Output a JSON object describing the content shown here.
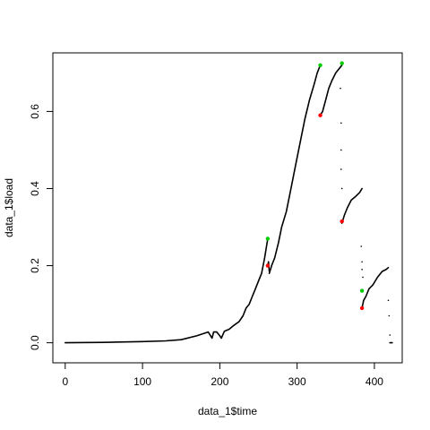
{
  "chart_data": {
    "type": "scatter",
    "xlabel": "data_1$time",
    "ylabel": "data_1$load",
    "xlim": [
      -16,
      436
    ],
    "ylim": [
      -0.052,
      0.752
    ],
    "x_ticks": [
      0,
      100,
      200,
      300,
      400
    ],
    "y_ticks": [
      0.0,
      0.2,
      0.4,
      0.6
    ],
    "x_tick_labels": [
      "0",
      "100",
      "200",
      "300",
      "400"
    ],
    "y_tick_labels": [
      "0.0",
      "0.2",
      "0.4",
      "0.6"
    ],
    "grid": false,
    "series": [
      {
        "style": "points-black",
        "color": "#000000",
        "segments": [
          [
            [
              0,
              0.0
            ],
            [
              50,
              0.001
            ],
            [
              100,
              0.003
            ],
            [
              130,
              0.005
            ],
            [
              150,
              0.008
            ],
            [
              170,
              0.018
            ],
            [
              185,
              0.028
            ],
            [
              190,
              0.012
            ],
            [
              192,
              0.028
            ],
            [
              196,
              0.028
            ],
            [
              200,
              0.018
            ],
            [
              202,
              0.012
            ],
            [
              206,
              0.03
            ],
            [
              212,
              0.035
            ],
            [
              218,
              0.045
            ],
            [
              225,
              0.055
            ],
            [
              230,
              0.07
            ],
            [
              234,
              0.09
            ],
            [
              238,
              0.1
            ],
            [
              242,
              0.12
            ],
            [
              246,
              0.14
            ],
            [
              250,
              0.16
            ],
            [
              254,
              0.18
            ],
            [
              258,
              0.22
            ],
            [
              262,
              0.27
            ]
          ],
          [
            [
              262,
              0.2
            ],
            [
              263,
              0.21
            ],
            [
              264,
              0.185
            ]
          ],
          [
            [
              264,
              0.18
            ],
            [
              267,
              0.2
            ],
            [
              271,
              0.22
            ],
            [
              276,
              0.26
            ],
            [
              280,
              0.3
            ],
            [
              286,
              0.34
            ],
            [
              292,
              0.4
            ],
            [
              298,
              0.46
            ],
            [
              304,
              0.52
            ],
            [
              310,
              0.58
            ],
            [
              316,
              0.63
            ],
            [
              322,
              0.67
            ],
            [
              326,
              0.7
            ],
            [
              330,
              0.72
            ]
          ],
          [
            [
              330,
              0.59
            ],
            [
              333,
              0.6
            ],
            [
              337,
              0.63
            ],
            [
              341,
              0.66
            ],
            [
              345,
              0.68
            ],
            [
              350,
              0.7
            ],
            [
              354,
              0.71
            ],
            [
              358,
              0.72
            ]
          ],
          [
            [
              358,
              0.31
            ],
            [
              361,
              0.33
            ],
            [
              365,
              0.35
            ],
            [
              370,
              0.37
            ],
            [
              376,
              0.38
            ],
            [
              381,
              0.39
            ],
            [
              384,
              0.4
            ]
          ],
          [
            [
              384,
              0.09
            ],
            [
              386,
              0.11
            ],
            [
              389,
              0.12
            ],
            [
              393,
              0.14
            ],
            [
              398,
              0.15
            ],
            [
              404,
              0.17
            ],
            [
              410,
              0.185
            ],
            [
              415,
              0.19
            ],
            [
              418,
              0.195
            ]
          ],
          [
            [
              420,
              0.0
            ],
            [
              423,
              0.0
            ]
          ]
        ],
        "scatter": [
          [
            356,
            0.66
          ],
          [
            357,
            0.57
          ],
          [
            357,
            0.5
          ],
          [
            357,
            0.45
          ],
          [
            358,
            0.4
          ],
          [
            383,
            0.25
          ],
          [
            384,
            0.21
          ],
          [
            384,
            0.19
          ],
          [
            385,
            0.17
          ],
          [
            418,
            0.11
          ],
          [
            419,
            0.07
          ],
          [
            420,
            0.02
          ]
        ]
      },
      {
        "style": "points-green",
        "color": "#00cc00",
        "points": [
          [
            262,
            0.27
          ],
          [
            330,
            0.72
          ],
          [
            358,
            0.725
          ],
          [
            384,
            0.135
          ]
        ]
      },
      {
        "style": "points-red",
        "color": "#ff0000",
        "points": [
          [
            262,
            0.2
          ],
          [
            330,
            0.59
          ],
          [
            358,
            0.315
          ],
          [
            384,
            0.09
          ]
        ]
      }
    ]
  }
}
